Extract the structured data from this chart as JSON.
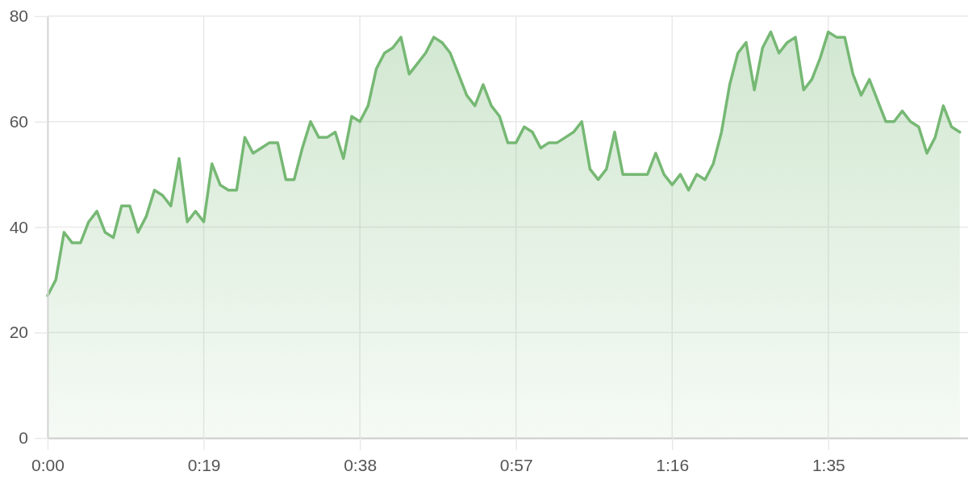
{
  "chart_data": {
    "type": "area",
    "x": [
      0,
      1,
      2,
      3,
      4,
      5,
      6,
      7,
      8,
      9,
      10,
      11,
      12,
      13,
      14,
      15,
      16,
      17,
      18,
      19,
      20,
      21,
      22,
      23,
      24,
      25,
      26,
      27,
      28,
      29,
      30,
      31,
      32,
      33,
      34,
      35,
      36,
      37,
      38,
      39,
      40,
      41,
      42,
      43,
      44,
      45,
      46,
      47,
      48,
      49,
      50,
      51,
      52,
      53,
      54,
      55,
      56,
      57,
      58,
      59,
      60,
      61,
      62,
      63,
      64,
      65,
      66,
      67,
      68,
      69,
      70,
      71,
      72,
      73,
      74,
      75,
      76,
      77,
      78,
      79,
      80,
      81,
      82,
      83,
      84,
      85,
      86,
      87,
      88,
      89,
      90,
      91,
      92,
      93,
      94,
      95,
      96,
      97,
      98,
      99,
      100,
      101,
      102,
      103,
      104,
      105,
      106,
      107,
      108,
      109,
      110,
      111
    ],
    "values": [
      27,
      30,
      39,
      37,
      37,
      41,
      43,
      39,
      38,
      44,
      44,
      39,
      42,
      47,
      46,
      44,
      53,
      41,
      43,
      41,
      52,
      48,
      47,
      47,
      57,
      54,
      55,
      56,
      56,
      49,
      49,
      55,
      60,
      57,
      57,
      58,
      53,
      61,
      60,
      63,
      70,
      73,
      74,
      76,
      69,
      71,
      73,
      76,
      75,
      73,
      69,
      65,
      63,
      67,
      63,
      61,
      56,
      56,
      59,
      58,
      55,
      56,
      56,
      57,
      58,
      60,
      51,
      49,
      51,
      58,
      50,
      50,
      50,
      50,
      54,
      50,
      48,
      50,
      47,
      50,
      49,
      52,
      58,
      67,
      73,
      75,
      66,
      74,
      77,
      73,
      75,
      76,
      66,
      68,
      72,
      77,
      76,
      76,
      69,
      65,
      68,
      64,
      60,
      60,
      62,
      60,
      59,
      54,
      57,
      63,
      59,
      58
    ],
    "color": "#76b874",
    "xlim": [
      0,
      112
    ],
    "xticks": [
      {
        "value": 0,
        "label": "0:00"
      },
      {
        "value": 19,
        "label": "0:19"
      },
      {
        "value": 38,
        "label": "0:38"
      },
      {
        "value": 57,
        "label": "0:57"
      },
      {
        "value": 76,
        "label": "1:16"
      },
      {
        "value": 95,
        "label": "1:35"
      }
    ],
    "ylim": [
      0,
      80
    ],
    "yticks": [
      0,
      20,
      40,
      60,
      80
    ],
    "grid": true
  }
}
